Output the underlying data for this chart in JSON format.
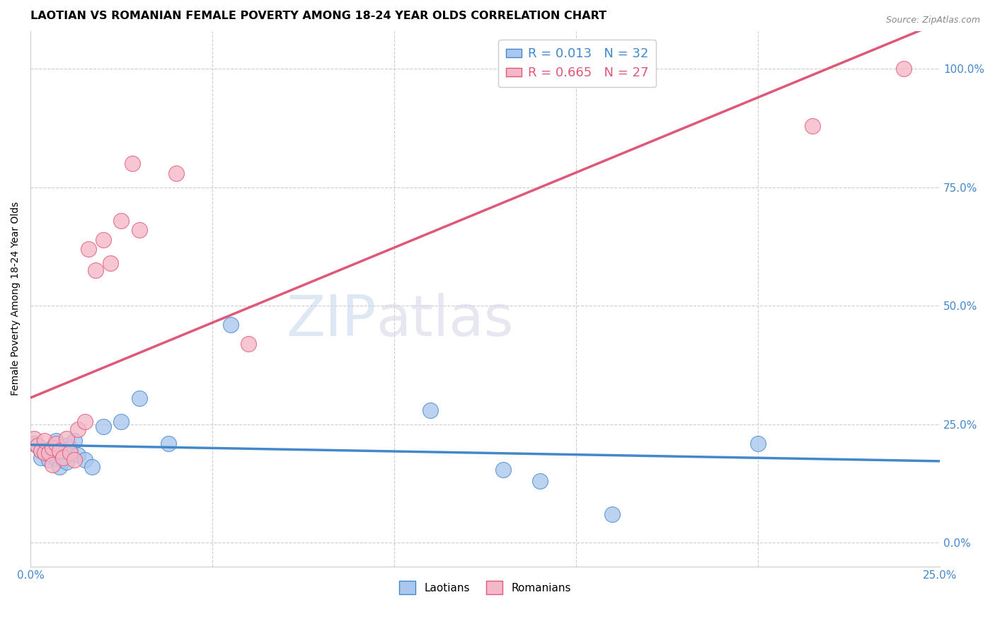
{
  "title": "LAOTIAN VS ROMANIAN FEMALE POVERTY AMONG 18-24 YEAR OLDS CORRELATION CHART",
  "source": "Source: ZipAtlas.com",
  "ylabel": "Female Poverty Among 18-24 Year Olds",
  "xlim": [
    0.0,
    0.25
  ],
  "ylim": [
    -0.05,
    1.08
  ],
  "laotian_R": 0.013,
  "laotian_N": 32,
  "romanian_R": 0.665,
  "romanian_N": 27,
  "laotian_color": "#aac8ee",
  "romanian_color": "#f4b8c8",
  "laotian_line_color": "#4488cc",
  "romanian_line_color": "#e05878",
  "laotian_x": [
    0.001,
    0.002,
    0.003,
    0.003,
    0.004,
    0.005,
    0.005,
    0.006,
    0.006,
    0.007,
    0.007,
    0.008,
    0.008,
    0.009,
    0.009,
    0.01,
    0.01,
    0.011,
    0.012,
    0.013,
    0.015,
    0.017,
    0.02,
    0.025,
    0.03,
    0.038,
    0.055,
    0.11,
    0.13,
    0.14,
    0.16,
    0.2
  ],
  "laotian_y": [
    0.21,
    0.205,
    0.195,
    0.18,
    0.19,
    0.185,
    0.175,
    0.2,
    0.195,
    0.215,
    0.18,
    0.19,
    0.16,
    0.175,
    0.195,
    0.205,
    0.17,
    0.2,
    0.215,
    0.185,
    0.175,
    0.16,
    0.245,
    0.255,
    0.305,
    0.21,
    0.46,
    0.28,
    0.155,
    0.13,
    0.06,
    0.21
  ],
  "romanian_x": [
    0.001,
    0.002,
    0.003,
    0.004,
    0.004,
    0.005,
    0.006,
    0.006,
    0.007,
    0.008,
    0.009,
    0.01,
    0.011,
    0.012,
    0.013,
    0.015,
    0.016,
    0.018,
    0.02,
    0.022,
    0.025,
    0.028,
    0.03,
    0.04,
    0.06,
    0.215,
    0.24
  ],
  "romanian_y": [
    0.22,
    0.205,
    0.195,
    0.19,
    0.215,
    0.19,
    0.2,
    0.165,
    0.21,
    0.195,
    0.18,
    0.22,
    0.19,
    0.175,
    0.24,
    0.255,
    0.62,
    0.575,
    0.64,
    0.59,
    0.68,
    0.8,
    0.66,
    0.78,
    0.42,
    0.88,
    1.0
  ],
  "yticks_right": [
    0.0,
    0.25,
    0.5,
    0.75,
    1.0
  ],
  "ytick_labels_right": [
    "0.0%",
    "25.0%",
    "50.0%",
    "75.0%",
    "100.0%"
  ],
  "xticks_show": [
    0.0,
    0.25
  ],
  "xtick_labels_show": [
    "0.0%",
    "25.0%"
  ],
  "grid_xticks": [
    0.05,
    0.1,
    0.15,
    0.2
  ],
  "grid_yticks": [
    0.0,
    0.25,
    0.5,
    0.75,
    1.0
  ]
}
